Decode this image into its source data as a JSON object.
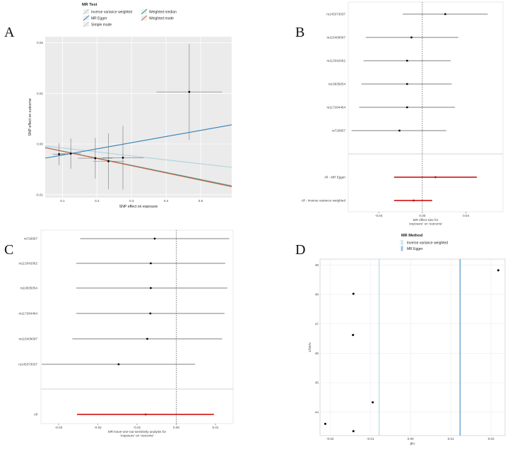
{
  "panels": {
    "a": {
      "label": "A"
    },
    "b": {
      "label": "B"
    },
    "c": {
      "label": "C"
    },
    "d": {
      "label": "D"
    }
  },
  "colors": {
    "ivw": "#a9d3df",
    "egger": "#2c7fb8",
    "wmedian": "#1b9e77",
    "simple": "#c8c8c8",
    "wmode": "#d95f47",
    "panel_bg": "#ebebeb",
    "summary": "#cc0000"
  },
  "chart_data": [
    {
      "id": "A",
      "type": "scatter",
      "title": "",
      "xlabel": "SNP effect on exposure",
      "ylabel": "SNP effect on outcome",
      "xlim": [
        0.05,
        0.59
      ],
      "ylim": [
        -0.0106,
        0.0212
      ],
      "xticks": [
        0.1,
        0.2,
        0.3,
        0.4,
        0.5
      ],
      "xtick_labels": [
        "0.1",
        "0.2",
        "0.3",
        "0.4",
        "0.5"
      ],
      "yticks": [
        -0.01,
        0.0,
        0.01,
        0.02
      ],
      "ytick_labels": [
        "-0.01",
        "0.00",
        "0.01",
        "0.02"
      ],
      "points": [
        {
          "x": 0.09,
          "y": -0.002,
          "xerr": 0.018,
          "yerr": 0.0022
        },
        {
          "x": 0.124,
          "y": -0.0019,
          "xerr": 0.03,
          "yerr": 0.003
        },
        {
          "x": 0.195,
          "y": -0.0028,
          "xerr": 0.05,
          "yerr": 0.004
        },
        {
          "x": 0.233,
          "y": -0.0034,
          "xerr": 0.045,
          "yerr": 0.0055
        },
        {
          "x": 0.275,
          "y": -0.0027,
          "xerr": 0.06,
          "yerr": 0.0063
        },
        {
          "x": 0.467,
          "y": 0.0103,
          "xerr": 0.095,
          "yerr": 0.0095
        }
      ],
      "lines": [
        {
          "method": "Inverse variance weighted",
          "slope": -0.0078,
          "intercept": 0.0
        },
        {
          "method": "MR Egger",
          "slope": 0.0122,
          "intercept": -0.0034
        },
        {
          "method": "Weighted median",
          "slope": -0.0141,
          "intercept": 0.0
        },
        {
          "method": "Simple mode",
          "slope": -0.0139,
          "intercept": 0.0
        },
        {
          "method": "Weighted mode",
          "slope": -0.0143,
          "intercept": 0.0
        }
      ],
      "legend": {
        "title": "MR Test",
        "position": "top",
        "entries": [
          "Inverse variance weighted",
          "MR Egger",
          "Simple mode",
          "Weighted median",
          "Weighted mode"
        ]
      }
    },
    {
      "id": "B",
      "type": "forest",
      "xlabel_line1": "MR effect size for",
      "xlabel_line2": "'exposure' on 'outcome'",
      "xlim": [
        -0.068,
        0.074
      ],
      "xticks": [
        -0.04,
        0.0,
        0.04
      ],
      "xtick_labels": [
        "-0.04",
        "0.00",
        "0.04"
      ],
      "snps": [
        {
          "label": "rs145373037",
          "est": 0.021,
          "lo": -0.018,
          "hi": 0.06
        },
        {
          "label": "rs115409097",
          "est": -0.01,
          "lo": -0.052,
          "hi": 0.033
        },
        {
          "label": "rs113342062",
          "est": -0.014,
          "lo": -0.054,
          "hi": 0.026
        },
        {
          "label": "rs10835054",
          "est": -0.014,
          "lo": -0.056,
          "hi": 0.027
        },
        {
          "label": "rs117284464",
          "est": -0.014,
          "lo": -0.058,
          "hi": 0.03
        },
        {
          "label": "rs726857",
          "est": -0.021,
          "lo": -0.065,
          "hi": 0.022
        }
      ],
      "summaries": [
        {
          "label": "All - MR Egger",
          "est": 0.012,
          "lo": -0.026,
          "hi": 0.05
        },
        {
          "label": "All - Inverse variance weighted",
          "est": -0.008,
          "lo": -0.026,
          "hi": 0.009
        }
      ]
    },
    {
      "id": "C",
      "type": "forest",
      "xlabel_line1": "MR leave-one-out sensitivity analysis for",
      "xlabel_line2": "'exposure' on 'outcome'",
      "xlim": [
        -0.0345,
        0.0145
      ],
      "xticks": [
        -0.03,
        -0.02,
        -0.01,
        0.0,
        0.01
      ],
      "xtick_labels": [
        "-0.03",
        "-0.02",
        "-0.01",
        "0.00",
        "0.01"
      ],
      "snps": [
        {
          "label": "rs726857",
          "est": -0.0055,
          "lo": -0.0245,
          "hi": 0.0135
        },
        {
          "label": "rs113342062",
          "est": -0.0065,
          "lo": -0.0255,
          "hi": 0.0125
        },
        {
          "label": "rs10835054",
          "est": -0.0065,
          "lo": -0.0255,
          "hi": 0.013
        },
        {
          "label": "rs117284464",
          "est": -0.0066,
          "lo": -0.0255,
          "hi": 0.0123
        },
        {
          "label": "rs115409097",
          "est": -0.0074,
          "lo": -0.0265,
          "hi": 0.0117
        },
        {
          "label": "rs145373037",
          "est": -0.0147,
          "lo": -0.0343,
          "hi": 0.0048
        }
      ],
      "summaries": [
        {
          "label": "All",
          "est": -0.0078,
          "lo": -0.0253,
          "hi": 0.0096
        }
      ]
    },
    {
      "id": "D",
      "type": "scatter",
      "xlabel": "β̂IV",
      "ylabel": "1/SEIV",
      "xlim": [
        -0.0225,
        0.0235
      ],
      "ylim": [
        43.2,
        49.2
      ],
      "xticks": [
        -0.02,
        -0.01,
        0.0,
        0.01,
        0.02
      ],
      "xtick_labels": [
        "-0.02",
        "-0.01",
        "0.00",
        "0.01",
        "0.02"
      ],
      "yticks": [
        44,
        45,
        46,
        47,
        48,
        49
      ],
      "ytick_labels": [
        "44",
        "45",
        "46",
        "47",
        "48",
        "49"
      ],
      "points": [
        {
          "x": 0.0218,
          "y": 48.82
        },
        {
          "x": -0.0142,
          "y": 48.02
        },
        {
          "x": -0.0143,
          "y": 46.62
        },
        {
          "x": -0.0094,
          "y": 44.33
        },
        {
          "x": -0.0212,
          "y": 43.6
        },
        {
          "x": -0.0142,
          "y": 43.35
        }
      ],
      "vlines": [
        {
          "method": "Inverse variance weighted",
          "x": -0.0078
        },
        {
          "method": "MR Egger",
          "x": 0.0123
        }
      ],
      "legend": {
        "title": "MR Method",
        "position": "top",
        "entries": [
          "Inverse variance weighted",
          "MR Egger"
        ]
      }
    }
  ]
}
